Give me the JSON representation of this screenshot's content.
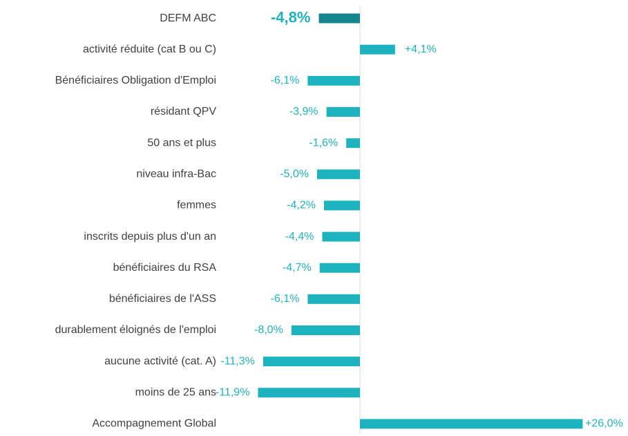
{
  "chart_data": {
    "type": "barh",
    "categories": [
      "DEFM ABC",
      "activité réduite (cat B ou C)",
      "Bénéficiaires Obligation d'Emploi",
      "résidant QPV",
      "50 ans et plus",
      "niveau infra-Bac",
      "femmes",
      "inscrits depuis plus d'un an",
      "bénéficiaires du RSA",
      "bénéficiaires de l'ASS",
      "durablement éloignés de l'emploi",
      "aucune activité (cat. A)",
      "moins de 25 ans",
      "Accompagnement Global"
    ],
    "values": [
      -4.8,
      4.1,
      -6.1,
      -3.9,
      -1.6,
      -5.0,
      -4.2,
      -4.4,
      -4.7,
      -6.1,
      -8.0,
      -11.3,
      -11.9,
      26.0
    ],
    "value_labels": [
      "-4,8%",
      "+4,1%",
      "-6,1%",
      "-3,9%",
      "-1,6%",
      "-5,0%",
      "-4,2%",
      "-4,4%",
      "-4,7%",
      "-6,1%",
      "-8,0%",
      "-11,3%",
      "-11,9%",
      "+26,0%"
    ],
    "colors": [
      "#17858c",
      "#1cb3bf",
      "#1cb3bf",
      "#1cb3bf",
      "#1cb3bf",
      "#1cb3bf",
      "#1cb3bf",
      "#1cb3bf",
      "#1cb3bf",
      "#1cb3bf",
      "#1cb3bf",
      "#1cb3bf",
      "#1cb3bf",
      "#1cb3bf"
    ],
    "xlim": [
      -15,
      30
    ]
  }
}
